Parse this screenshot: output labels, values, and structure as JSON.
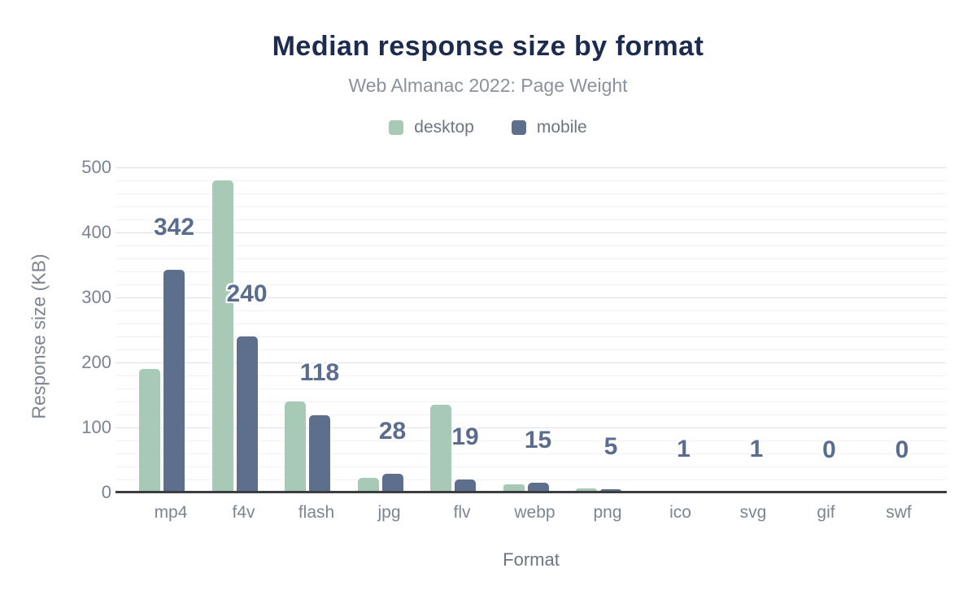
{
  "chart_data": {
    "type": "bar",
    "title": "Median response size by format",
    "subtitle": "Web Almanac 2022: Page Weight",
    "xlabel": "Format",
    "ylabel": "Response size (KB)",
    "categories": [
      "mp4",
      "f4v",
      "flash",
      "jpg",
      "flv",
      "webp",
      "png",
      "ico",
      "svg",
      "gif",
      "swf"
    ],
    "series": [
      {
        "name": "desktop",
        "color": "#a7c9b6",
        "values": [
          190,
          479,
          139,
          22,
          134,
          12,
          6,
          1,
          1,
          0,
          0
        ]
      },
      {
        "name": "mobile",
        "color": "#5d6f8c",
        "values": [
          342,
          240,
          118,
          28,
          19,
          15,
          5,
          1,
          1,
          0,
          0
        ]
      }
    ],
    "value_labels": {
      "labeled_series": "mobile",
      "values": [
        "342",
        "240",
        "118",
        "28",
        "19",
        "15",
        "5",
        "1",
        "1",
        "0",
        "0"
      ]
    },
    "yticks": [
      0,
      100,
      200,
      300,
      400,
      500
    ],
    "ylim": [
      0,
      500
    ],
    "grid": {
      "minor_step_kb": 20,
      "major_step_kb": 100,
      "gridlines": "horizontal"
    },
    "legend_position": "top",
    "colors": {
      "title": "#1d2b4f",
      "subtitle": "#8c929c",
      "axis_text": "#7d8591",
      "value_label": "#5a6d8f",
      "desktop": "#a7c9b6",
      "mobile": "#5d6f8c"
    }
  }
}
